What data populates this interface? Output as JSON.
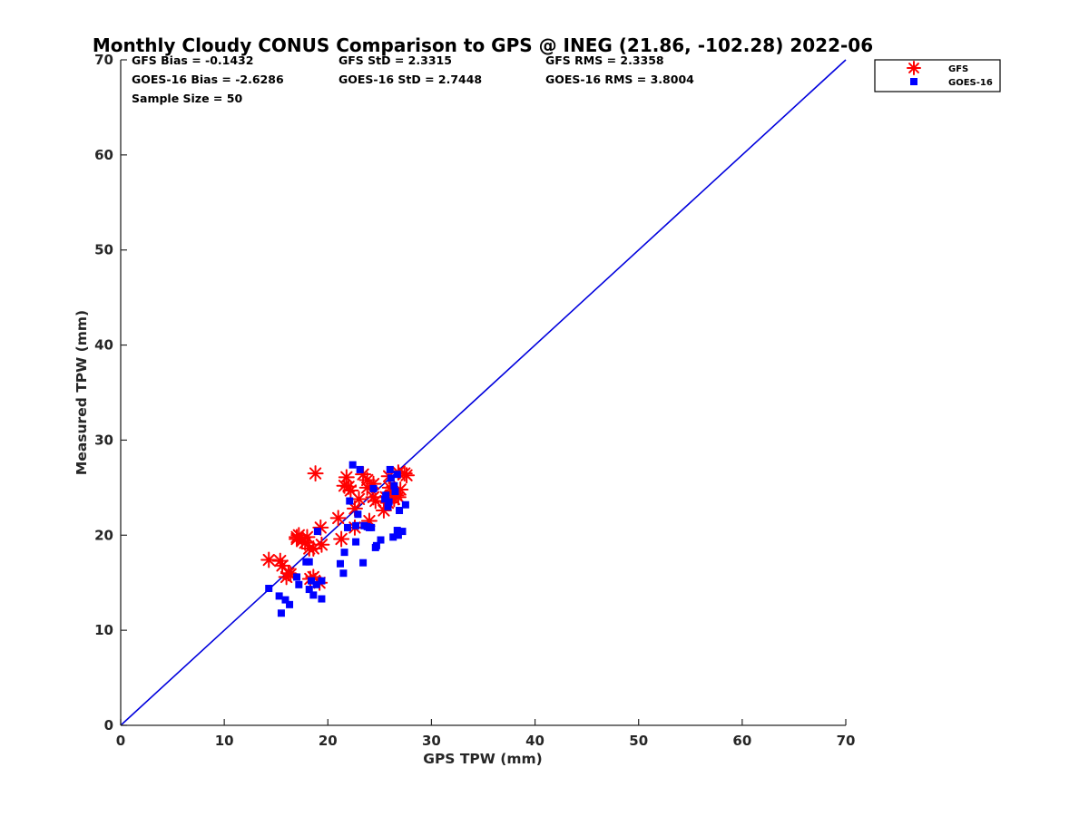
{
  "chart_data": {
    "type": "scatter",
    "title": "Monthly Cloudy CONUS Comparison to GPS @ INEG (21.86, -102.28) 2022-06",
    "xlabel": "GPS TPW (mm)",
    "ylabel": "Measured TPW (mm)",
    "xlim": [
      0,
      70
    ],
    "ylim": [
      0,
      70
    ],
    "xticks": [
      "0",
      "10",
      "20",
      "30",
      "40",
      "50",
      "60",
      "70"
    ],
    "yticks": [
      "0",
      "10",
      "20",
      "30",
      "40",
      "50",
      "60",
      "70"
    ],
    "grid": false,
    "legend_position": "outside-top-right",
    "stats": [
      "GFS Bias = -0.1432",
      "GFS StD = 2.3315",
      "GFS RMS = 2.3358",
      "GOES-16 Bias = -2.6286",
      "GOES-16 StD = 2.7448",
      "GOES-16 RMS = 3.8004",
      "Sample Size = 50"
    ],
    "reference_line": {
      "name": "1:1",
      "x": [
        0,
        70
      ],
      "y": [
        0,
        70
      ],
      "color": "#0000dd"
    },
    "series": [
      {
        "name": "GFS",
        "marker": "asterisk",
        "color": "#ff0000",
        "x": [
          14.3,
          15.4,
          15.6,
          16.2,
          16.0,
          17.0,
          17.2,
          17.5,
          17.8,
          18.0,
          18.2,
          18.6,
          18.8,
          19.2,
          19.3,
          19.4,
          18.3,
          21.0,
          21.3,
          21.6,
          21.8,
          22.0,
          22.2,
          22.6,
          23.0,
          23.4,
          23.8,
          24.0,
          24.4,
          24.6,
          25.4,
          25.6,
          25.9,
          26.0,
          26.2,
          26.4,
          26.6,
          26.8,
          27.0,
          27.4,
          27.6,
          26.4,
          26.8,
          25.8,
          23.8,
          24.4,
          22.6,
          18.6,
          17.0,
          16.4
        ],
        "y": [
          17.4,
          17.3,
          16.8,
          16.0,
          15.6,
          19.8,
          20.0,
          19.4,
          19.2,
          19.8,
          18.6,
          15.6,
          26.5,
          15.0,
          20.8,
          19.0,
          15.4,
          21.8,
          19.6,
          25.2,
          26.1,
          25.1,
          24.7,
          20.8,
          23.8,
          26.4,
          25.8,
          21.5,
          25.4,
          23.6,
          22.6,
          24.0,
          26.2,
          25.0,
          24.6,
          23.8,
          24.2,
          26.6,
          24.8,
          26.5,
          26.3,
          24.4,
          24.0,
          23.4,
          25.0,
          24.0,
          22.8,
          18.6,
          19.6,
          15.9
        ]
      },
      {
        "name": "GOES-16",
        "marker": "square",
        "color": "#0000ff",
        "x": [
          14.3,
          15.3,
          15.5,
          15.9,
          16.3,
          17.0,
          17.2,
          17.9,
          18.2,
          18.4,
          18.2,
          18.6,
          19.0,
          19.4,
          19.4,
          21.2,
          21.5,
          21.6,
          21.9,
          22.1,
          22.4,
          22.7,
          22.9,
          23.1,
          23.4,
          23.8,
          24.0,
          24.4,
          24.6,
          24.7,
          25.1,
          25.5,
          25.8,
          26.0,
          26.3,
          26.5,
          26.8,
          26.7,
          26.9,
          27.2,
          27.5,
          26.4,
          25.9,
          26.1,
          25.6,
          26.7,
          23.5,
          24.2,
          22.7,
          18.9
        ],
        "y": [
          14.4,
          13.6,
          11.8,
          13.2,
          12.7,
          15.6,
          14.8,
          17.2,
          14.3,
          15.2,
          17.2,
          13.7,
          20.4,
          15.2,
          13.3,
          17.0,
          16.0,
          18.2,
          20.8,
          23.6,
          27.4,
          19.3,
          22.2,
          26.9,
          17.1,
          20.9,
          20.8,
          24.9,
          18.7,
          18.9,
          19.5,
          23.8,
          23.0,
          26.9,
          19.8,
          24.6,
          20.0,
          20.5,
          22.6,
          20.4,
          23.2,
          25.2,
          23.5,
          26.0,
          24.2,
          26.4,
          21.0,
          20.8,
          21.0,
          14.8
        ]
      }
    ]
  }
}
